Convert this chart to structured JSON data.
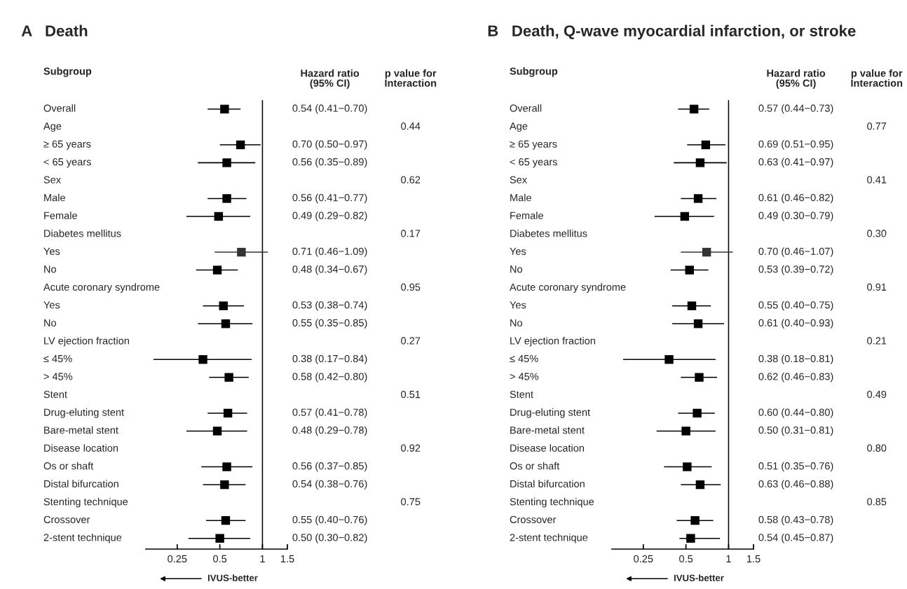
{
  "chart_data": [
    {
      "type": "scatter",
      "orientation": "horizontal",
      "title": "A   Death",
      "marker": "square",
      "log": "x",
      "categories": [
        "Overall",
        "Age",
        "≥ 65 years",
        "< 65 years",
        "Sex",
        "Male",
        "Female",
        "Diabetes mellitus",
        "Yes",
        "No",
        "Acute coronary syndrome",
        "Yes",
        "No",
        "LV ejection fraction",
        "≤ 45%",
        "> 45%",
        "Stent",
        "Drug-eluting stent",
        "Bare-metal stent",
        "Disease location",
        "Os or shaft",
        "Distal bifurcation",
        "Stenting technique",
        "Crossover",
        "2-stent technique"
      ],
      "values": [
        0.54,
        null,
        0.7,
        0.56,
        null,
        0.56,
        0.49,
        null,
        0.71,
        0.48,
        null,
        0.53,
        0.55,
        null,
        0.38,
        0.58,
        null,
        0.57,
        0.48,
        null,
        0.56,
        0.54,
        null,
        0.55,
        0.5
      ],
      "errors": [
        [
          0.41,
          0.7
        ],
        null,
        [
          0.5,
          0.97
        ],
        [
          0.35,
          0.89
        ],
        null,
        [
          0.41,
          0.77
        ],
        [
          0.29,
          0.82
        ],
        null,
        [
          0.46,
          1.09
        ],
        [
          0.34,
          0.67
        ],
        null,
        [
          0.38,
          0.74
        ],
        [
          0.35,
          0.85
        ],
        null,
        [
          0.17,
          0.84
        ],
        [
          0.42,
          0.8
        ],
        null,
        [
          0.41,
          0.78
        ],
        [
          0.29,
          0.78
        ],
        null,
        [
          0.37,
          0.85
        ],
        [
          0.38,
          0.76
        ],
        null,
        [
          0.4,
          0.76
        ],
        [
          0.3,
          0.82
        ]
      ],
      "colors": [
        "#000000",
        null,
        "#000000",
        "#000000",
        null,
        "#000000",
        "#000000",
        null,
        "#333333",
        "#000000",
        null,
        "#000000",
        "#000000",
        null,
        "#000000",
        "#000000",
        null,
        "#000000",
        "#000000",
        null,
        "#000000",
        "#000000",
        null,
        "#000000",
        "#000000"
      ],
      "value_labels": [
        "0.54 (0.41−0.70)",
        null,
        "0.70 (0.50−0.97)",
        "0.56 (0.35−0.89)",
        null,
        "0.56 (0.41−0.77)",
        "0.49 (0.29−0.82)",
        null,
        "0.71 (0.46−1.09)",
        "0.48 (0.34−0.67)",
        null,
        "0.53 (0.38−0.74)",
        "0.55 (0.35−0.85)",
        null,
        "0.38 (0.17−0.84)",
        "0.58 (0.42−0.80)",
        null,
        "0.57 (0.41−0.78)",
        "0.48 (0.29−0.78)",
        null,
        "0.56 (0.37−0.85)",
        "0.54 (0.38−0.76)",
        null,
        "0.55 (0.40−0.76)",
        "0.50 (0.30−0.82)"
      ],
      "xlim": [
        0.15,
        1.5
      ],
      "xticks": [
        0.25,
        0.5,
        1,
        1.5
      ],
      "ref_lines": [
        {
          "axis": "x",
          "value": 1,
          "color": "#000000"
        }
      ],
      "annotations": [
        "Subgroup",
        "Hazard ratio\n(95% CI)",
        "p value for\nInteraction",
        "IVUS-better",
        "0.44",
        "0.62",
        "0.17",
        "0.95",
        "0.27",
        "0.51",
        "0.92",
        "0.75"
      ]
    },
    {
      "type": "scatter",
      "orientation": "horizontal",
      "title": "B   Death, Q-wave myocardial infarction, or stroke",
      "marker": "square",
      "log": "x",
      "categories": [
        "Overall",
        "Age",
        "≥ 65 years",
        "< 65 years",
        "Sex",
        "Male",
        "Female",
        "Diabetes mellitus",
        "Yes",
        "No",
        "Acute coronary syndrome",
        "Yes",
        "No",
        "LV ejection fraction",
        "≤ 45%",
        "> 45%",
        "Stent",
        "Drug-eluting stent",
        "Bare-metal stent",
        "Disease location",
        "Os or shaft",
        "Distal bifurcation",
        "Stenting technique",
        "Crossover",
        "2-stent technique"
      ],
      "values": [
        0.57,
        null,
        0.69,
        0.63,
        null,
        0.61,
        0.49,
        null,
        0.7,
        0.53,
        null,
        0.55,
        0.61,
        null,
        0.38,
        0.62,
        null,
        0.6,
        0.5,
        null,
        0.51,
        0.63,
        null,
        0.58,
        0.54
      ],
      "errors": [
        [
          0.44,
          0.73
        ],
        null,
        [
          0.51,
          0.95
        ],
        [
          0.41,
          0.97
        ],
        null,
        [
          0.46,
          0.82
        ],
        [
          0.3,
          0.79
        ],
        null,
        [
          0.46,
          1.07
        ],
        [
          0.39,
          0.72
        ],
        null,
        [
          0.4,
          0.75
        ],
        [
          0.4,
          0.93
        ],
        null,
        [
          0.18,
          0.81
        ],
        [
          0.46,
          0.83
        ],
        null,
        [
          0.44,
          0.8
        ],
        [
          0.31,
          0.81
        ],
        null,
        [
          0.35,
          0.76
        ],
        [
          0.46,
          0.88
        ],
        null,
        [
          0.43,
          0.78
        ],
        [
          0.45,
          0.87
        ]
      ],
      "colors": [
        "#000000",
        null,
        "#000000",
        "#000000",
        null,
        "#000000",
        "#000000",
        null,
        "#333333",
        "#000000",
        null,
        "#000000",
        "#000000",
        null,
        "#000000",
        "#000000",
        null,
        "#000000",
        "#000000",
        null,
        "#000000",
        "#000000",
        null,
        "#000000",
        "#000000"
      ],
      "value_labels": [
        "0.57 (0.44−0.73)",
        null,
        "0.69 (0.51−0.95)",
        "0.63 (0.41−0.97)",
        null,
        "0.61 (0.46−0.82)",
        "0.49 (0.30−0.79)",
        null,
        "0.70 (0.46−1.07)",
        "0.53 (0.39−0.72)",
        null,
        "0.55 (0.40−0.75)",
        "0.61 (0.40−0.93)",
        null,
        "0.38 (0.18−0.81)",
        "0.62 (0.46−0.83)",
        null,
        "0.60 (0.44−0.80)",
        "0.50 (0.31−0.81)",
        null,
        "0.51 (0.35−0.76)",
        "0.63 (0.46−0.88)",
        null,
        "0.58 (0.43−0.78)",
        "0.54 (0.45−0.87)"
      ],
      "xlim": [
        0.15,
        1.5
      ],
      "xticks": [
        0.25,
        0.5,
        1,
        1.5
      ],
      "ref_lines": [
        {
          "axis": "x",
          "value": 1,
          "color": "#000000"
        }
      ],
      "annotations": [
        "Subgroup",
        "Hazard ratio\n(95% CI)",
        "p value for\nInteraction",
        "IVUS-better",
        "0.77",
        "0.41",
        "0.30",
        "0.91",
        "0.21",
        "0.49",
        "0.80",
        "0.85"
      ]
    }
  ]
}
